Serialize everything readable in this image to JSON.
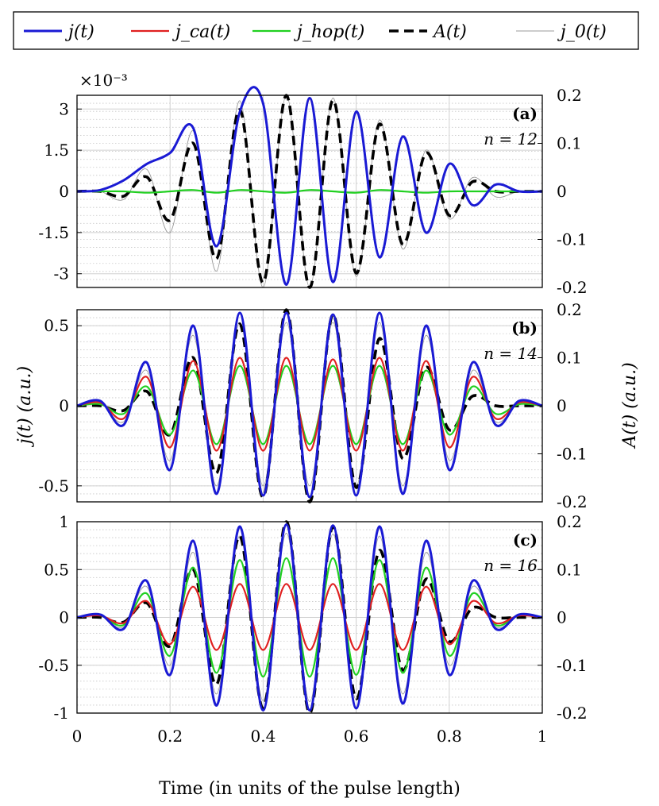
{
  "chart_data": [
    {
      "type": "line",
      "panel_label": "(a)",
      "annotation": "n = 12",
      "y_exponent_label": "×10⁻³",
      "x": [
        0,
        0.05,
        0.1,
        0.15,
        0.2,
        0.25,
        0.3,
        0.35,
        0.4,
        0.45,
        0.5,
        0.55,
        0.6,
        0.65,
        0.7,
        0.75,
        0.8,
        0.85,
        0.9,
        0.95,
        1
      ],
      "xlim": [
        0,
        1
      ],
      "ylim_left": [
        -3.5,
        3.5
      ],
      "ylim_right": [
        -0.2,
        0.2
      ],
      "yticks_left": [
        "-3",
        "-1.5",
        "0",
        "1.5",
        "3"
      ],
      "yticks_right": [
        "-0.2",
        "-0.1",
        "0",
        "0.1",
        "0.2"
      ],
      "series": [
        {
          "name": "j(t)",
          "color": "#1a1ad4",
          "axis": "left",
          "values": [
            0,
            0.05,
            0.4,
            1.0,
            1.4,
            2.3,
            -2.0,
            2.9,
            3.2,
            -3.4,
            3.4,
            -3.3,
            2.9,
            -2.4,
            2.0,
            -1.5,
            1.0,
            -0.5,
            0.25,
            0,
            0
          ]
        },
        {
          "name": "j_ca(t)",
          "color": "#e02020",
          "axis": "left",
          "values": [
            0,
            0.05,
            0.4,
            1.0,
            1.4,
            2.3,
            -2.0,
            2.9,
            3.2,
            -3.4,
            3.4,
            -3.3,
            2.9,
            -2.4,
            2.0,
            -1.5,
            1.0,
            -0.5,
            0.25,
            0,
            0
          ]
        },
        {
          "name": "j_hop(t)",
          "color": "#20d020",
          "axis": "left",
          "values": [
            0,
            0,
            0,
            -0.05,
            0,
            0.05,
            -0.05,
            0.05,
            0,
            -0.05,
            0.05,
            0,
            -0.05,
            0.05,
            0,
            -0.05,
            0,
            0,
            0,
            0,
            0
          ]
        },
        {
          "name": "A(t)",
          "color": "#000000",
          "axis": "right",
          "values": [
            0,
            0,
            -0.01,
            0.03,
            -0.06,
            0.1,
            -0.14,
            0.17,
            -0.19,
            0.2,
            -0.2,
            0.19,
            -0.17,
            0.14,
            -0.11,
            0.08,
            -0.05,
            0.02,
            0,
            0,
            0
          ]
        },
        {
          "name": "j_0(t)",
          "color": "#999999",
          "axis": "left",
          "values": [
            0,
            0,
            -0.3,
            0.8,
            -1.5,
            2.2,
            -2.9,
            3.3,
            -3.5,
            3.5,
            -3.5,
            3.4,
            -3.1,
            2.6,
            -2.1,
            1.5,
            -1.0,
            0.5,
            -0.2,
            0,
            0
          ]
        }
      ]
    },
    {
      "type": "line",
      "panel_label": "(b)",
      "annotation": "n = 14",
      "x": [
        0,
        0.05,
        0.1,
        0.15,
        0.2,
        0.25,
        0.3,
        0.35,
        0.4,
        0.45,
        0.5,
        0.55,
        0.6,
        0.65,
        0.7,
        0.75,
        0.8,
        0.85,
        0.9,
        0.95,
        1
      ],
      "xlim": [
        0,
        1
      ],
      "ylim_left": [
        -0.6,
        0.6
      ],
      "ylim_right": [
        -0.2,
        0.2
      ],
      "yticks_left": [
        "-0.5",
        "0",
        "0.5"
      ],
      "yticks_right": [
        "-0.2",
        "-0.1",
        "0",
        "0.1",
        "0.2"
      ],
      "series": [
        {
          "name": "j(t)",
          "color": "#1a1ad4",
          "axis": "left",
          "values": [
            0,
            0.03,
            -0.12,
            0.27,
            -0.4,
            0.5,
            -0.55,
            0.58,
            -0.56,
            0.58,
            -0.57,
            0.57,
            -0.56,
            0.58,
            -0.55,
            0.5,
            -0.4,
            0.27,
            -0.12,
            0.03,
            0
          ]
        },
        {
          "name": "j_ca(t)",
          "color": "#e02020",
          "axis": "left",
          "values": [
            0,
            0.02,
            -0.08,
            0.18,
            -0.26,
            0.28,
            -0.28,
            0.3,
            -0.28,
            0.3,
            -0.28,
            0.29,
            -0.28,
            0.3,
            -0.28,
            0.28,
            -0.26,
            0.18,
            -0.08,
            0.02,
            0
          ]
        },
        {
          "name": "j_hop(t)",
          "color": "#20d020",
          "axis": "left",
          "values": [
            0,
            0.01,
            -0.05,
            0.12,
            -0.18,
            0.22,
            -0.24,
            0.25,
            -0.24,
            0.25,
            -0.24,
            0.25,
            -0.24,
            0.25,
            -0.24,
            0.22,
            -0.18,
            0.12,
            -0.05,
            0.01,
            0
          ]
        },
        {
          "name": "A(t)",
          "color": "#000000",
          "axis": "right",
          "values": [
            0,
            0,
            -0.01,
            0.03,
            -0.06,
            0.1,
            -0.14,
            0.17,
            -0.19,
            0.2,
            -0.2,
            0.19,
            -0.17,
            0.14,
            -0.11,
            0.08,
            -0.05,
            0.02,
            0,
            0,
            0
          ]
        },
        {
          "name": "j_0(t)",
          "color": "#999999",
          "axis": "left",
          "values": [
            0,
            0.02,
            -0.1,
            0.22,
            -0.34,
            0.44,
            -0.5,
            0.52,
            -0.5,
            0.52,
            -0.5,
            0.52,
            -0.5,
            0.52,
            -0.5,
            0.44,
            -0.34,
            0.22,
            -0.1,
            0.02,
            0
          ]
        }
      ]
    },
    {
      "type": "line",
      "panel_label": "(c)",
      "annotation": "n = 16",
      "x": [
        0,
        0.05,
        0.1,
        0.15,
        0.2,
        0.25,
        0.3,
        0.35,
        0.4,
        0.45,
        0.5,
        0.55,
        0.6,
        0.65,
        0.7,
        0.75,
        0.8,
        0.85,
        0.9,
        0.95,
        1
      ],
      "xlim": [
        0,
        1
      ],
      "ylim_left": [
        -1,
        1
      ],
      "ylim_right": [
        -0.2,
        0.2
      ],
      "yticks_left": [
        "-1",
        "-0.5",
        "0",
        "0.5",
        "1"
      ],
      "yticks_right": [
        "-0.2",
        "-0.1",
        "0",
        "0.1",
        "0.2"
      ],
      "xticks": [
        "0",
        "0.2",
        "0.4",
        "0.6",
        "0.8",
        "1"
      ],
      "series": [
        {
          "name": "j(t)",
          "color": "#1a1ad4",
          "axis": "left",
          "values": [
            0,
            0.03,
            -0.12,
            0.38,
            -0.6,
            0.8,
            -0.92,
            0.95,
            -0.97,
            0.97,
            -0.97,
            0.96,
            -0.95,
            0.95,
            -0.9,
            0.8,
            -0.6,
            0.38,
            -0.12,
            0.03,
            0
          ]
        },
        {
          "name": "j_ca(t)",
          "color": "#e02020",
          "axis": "left",
          "values": [
            0,
            0.02,
            -0.06,
            0.17,
            -0.28,
            0.32,
            -0.34,
            0.35,
            -0.34,
            0.35,
            -0.34,
            0.35,
            -0.34,
            0.35,
            -0.34,
            0.32,
            -0.28,
            0.17,
            -0.06,
            0.02,
            0
          ]
        },
        {
          "name": "j_hop(t)",
          "color": "#20d020",
          "axis": "left",
          "values": [
            0,
            0.02,
            -0.08,
            0.25,
            -0.4,
            0.52,
            -0.58,
            0.6,
            -0.62,
            0.62,
            -0.62,
            0.62,
            -0.6,
            0.6,
            -0.58,
            0.52,
            -0.4,
            0.25,
            -0.08,
            0.02,
            0
          ]
        },
        {
          "name": "A(t)",
          "color": "#000000",
          "axis": "right",
          "values": [
            0,
            0,
            -0.01,
            0.03,
            -0.06,
            0.1,
            -0.14,
            0.17,
            -0.19,
            0.2,
            -0.2,
            0.19,
            -0.17,
            0.14,
            -0.11,
            0.08,
            -0.05,
            0.02,
            0,
            0,
            0
          ]
        },
        {
          "name": "j_0(t)",
          "color": "#999999",
          "axis": "left",
          "values": [
            0,
            0.02,
            -0.1,
            0.32,
            -0.5,
            0.68,
            -0.8,
            0.85,
            -0.87,
            0.88,
            -0.88,
            0.87,
            -0.86,
            0.85,
            -0.8,
            0.68,
            -0.5,
            0.32,
            -0.1,
            0.02,
            0
          ]
        }
      ]
    }
  ],
  "legend": {
    "position": "top",
    "entries": [
      {
        "label": "j(t)",
        "color": "#1a1ad4",
        "style": "solid-thick"
      },
      {
        "label": "j_ca(t)",
        "color": "#e02020",
        "style": "solid"
      },
      {
        "label": "j_hop(t)",
        "color": "#20d020",
        "style": "solid"
      },
      {
        "label": "A(t)",
        "color": "#000000",
        "style": "dashed"
      },
      {
        "label": "j_0(t)",
        "color": "#999999",
        "style": "thin"
      }
    ]
  },
  "axes_text": {
    "xlabel": "Time (in units of the pulse length)",
    "ylabel_left": "j(t) (a.u.)",
    "ylabel_right": "A(t) (a.u.)"
  }
}
